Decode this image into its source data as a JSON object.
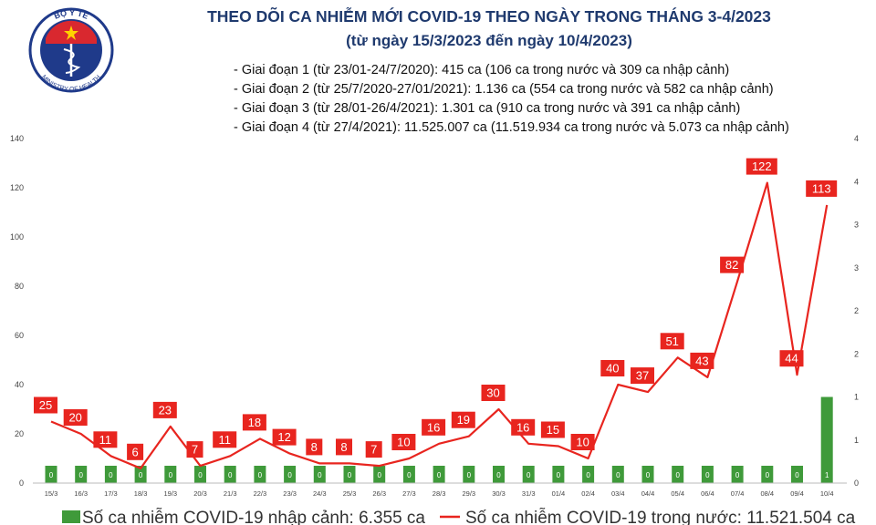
{
  "logo": {
    "top_text": "BỘ Y TẾ",
    "bottom_text": "MINISTRY OF HEALTH",
    "colors": {
      "ring": "#1f3a8a",
      "flag_red": "#d9282f",
      "star": "#ffd200"
    }
  },
  "header": {
    "title": "THEO DÕI CA NHIỄM MỚI COVID-19 THEO NGÀY TRONG THÁNG 3-4/2023",
    "subtitle": "(từ ngày 15/3/2023 đến ngày 10/4/2023)"
  },
  "phases": [
    "- Giai đoạn 1 (từ 23/01-24/7/2020): 415 ca (106 ca trong nước và 309 ca nhập cảnh)",
    "- Giai đoạn 2 (từ 25/7/2020-27/01/2021): 1.136 ca (554 ca trong nước và 582 ca nhập cảnh)",
    "- Giai đoạn 3 (từ 28/01-26/4/2021): 1.301 ca (910 ca trong nước và 391 ca nhập cảnh)",
    "- Giai đoạn 4 (từ 27/4/2021): 11.525.007 ca (11.519.934 ca trong nước và 5.073 ca nhập cảnh)"
  ],
  "chart_data": {
    "type": "bar+line",
    "categories": [
      "15/3",
      "16/3",
      "17/3",
      "18/3",
      "19/3",
      "20/3",
      "21/3",
      "22/3",
      "23/3",
      "24/3",
      "25/3",
      "26/3",
      "27/3",
      "28/3",
      "29/3",
      "30/3",
      "31/3",
      "01/4",
      "02/4",
      "03/4",
      "04/4",
      "05/4",
      "06/4",
      "07/4",
      "08/4",
      "09/4",
      "10/4"
    ],
    "series": [
      {
        "name": "Số ca nhiễm COVID-19 nhập cảnh: 6.355 ca",
        "type": "bar",
        "axis": "right",
        "values": [
          0,
          0,
          0,
          0,
          0,
          0,
          0,
          0,
          0,
          0,
          0,
          0,
          0,
          0,
          0,
          0,
          0,
          0,
          0,
          0,
          0,
          0,
          0,
          0,
          0,
          0,
          1
        ],
        "data_labels": [
          "0",
          "0",
          "0",
          "0",
          "0",
          "0",
          "0",
          "0",
          "0",
          "0",
          "0",
          "0",
          "0",
          "0",
          "0",
          "0",
          "0",
          "0",
          "0",
          "0",
          "0",
          "0",
          "0",
          "0",
          "0",
          "0",
          "1"
        ],
        "color": "#3f9a3a"
      },
      {
        "name": "Số ca nhiễm COVID-19 trong nước: 11.521.504 ca",
        "type": "line",
        "axis": "left",
        "values": [
          25,
          20,
          11,
          6,
          23,
          7,
          11,
          18,
          12,
          8,
          8,
          7,
          10,
          16,
          19,
          30,
          16,
          15,
          10,
          40,
          37,
          51,
          43,
          82,
          122,
          44,
          113
        ],
        "color": "#e8251f"
      }
    ],
    "y_left": {
      "ylim": [
        0,
        140
      ],
      "ticks": [
        "0",
        "20",
        "40",
        "60",
        "80",
        "100",
        "120",
        "140"
      ]
    },
    "y_right": {
      "ylim": [
        0,
        4
      ],
      "ticks": [
        "0",
        "1",
        "1",
        "2",
        "2",
        "3",
        "3",
        "4",
        "4"
      ],
      "tick_values": [
        0,
        0.5,
        1,
        1.5,
        2,
        2.5,
        3,
        3.5,
        4
      ]
    },
    "legend_position": "bottom",
    "grid": false
  }
}
